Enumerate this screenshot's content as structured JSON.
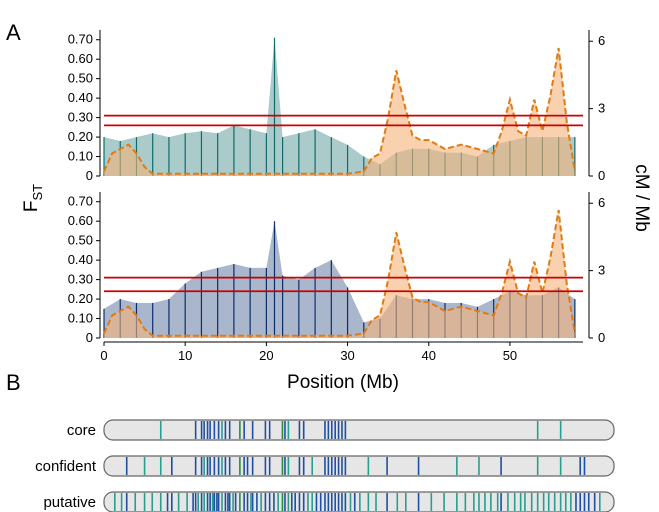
{
  "panels": {
    "a_label": "A",
    "b_label": "B"
  },
  "axes": {
    "left_label_main": "F",
    "left_label_sub": "ST",
    "right_label": "cM / Mb",
    "x_label": "Position (Mb)",
    "fst_ticks": [
      "0",
      "0.10",
      "0.20",
      "0.30",
      "0.40",
      "0.50",
      "0.60",
      "0.70"
    ],
    "cm_ticks": [
      "0",
      "3",
      "6"
    ],
    "x_ticks": [
      "0",
      "10",
      "20",
      "30",
      "40",
      "50"
    ]
  },
  "colors": {
    "top_series": "#0f6b6b",
    "bottom_series": "#0b2e6b",
    "recomb_line": "#e07b12",
    "recomb_fill": "#f5b27a",
    "threshold": "#cc0000",
    "track_bg": "#e6e6e6",
    "track_border": "#666666",
    "band_blue": "#1f4fa0",
    "band_teal": "#2a9d8f",
    "band_green": "#2e8b3a"
  },
  "chart_data": [
    {
      "type": "bar",
      "title": "",
      "xlabel": "Position (Mb)",
      "ylabel": "FST",
      "y2label": "cM / Mb",
      "xlim": [
        0,
        59
      ],
      "ylim": [
        0,
        0.75
      ],
      "y2lim": [
        0,
        6.5
      ],
      "grid": false,
      "thresholds": [
        0.31,
        0.26
      ],
      "series": [
        {
          "kind": "fst",
          "x": [
            0,
            2,
            4,
            6,
            8,
            10,
            12,
            14,
            16,
            18,
            20,
            21,
            22,
            24,
            26,
            28,
            30,
            32,
            34,
            36,
            38,
            40,
            42,
            44,
            46,
            48,
            50,
            52,
            54,
            56,
            58
          ],
          "values": [
            0.2,
            0.18,
            0.2,
            0.22,
            0.2,
            0.22,
            0.23,
            0.22,
            0.26,
            0.24,
            0.22,
            0.71,
            0.2,
            0.22,
            0.24,
            0.2,
            0.16,
            0.1,
            0.06,
            0.12,
            0.14,
            0.14,
            0.12,
            0.12,
            0.1,
            0.16,
            0.18,
            0.2,
            0.2,
            0.2,
            0.2
          ]
        },
        {
          "kind": "recombination",
          "x": [
            0,
            1,
            2,
            3,
            4,
            5,
            6,
            8,
            10,
            12,
            14,
            16,
            18,
            20,
            22,
            24,
            26,
            28,
            30,
            32,
            33,
            34,
            35,
            36,
            37,
            38,
            39,
            40,
            42,
            44,
            46,
            48,
            49,
            50,
            51,
            52,
            53,
            54,
            55,
            56,
            57,
            58
          ],
          "values": [
            0.2,
            1.0,
            1.2,
            1.4,
            1.0,
            0.4,
            0.1,
            0.1,
            0.1,
            0.1,
            0.1,
            0.1,
            0.1,
            0.1,
            0.1,
            0.1,
            0.1,
            0.1,
            0.1,
            0.2,
            0.8,
            1.0,
            2.6,
            4.7,
            3.2,
            1.8,
            1.6,
            1.6,
            1.2,
            1.4,
            1.2,
            1.0,
            2.0,
            3.4,
            2.0,
            1.8,
            3.4,
            2.0,
            3.6,
            5.7,
            2.4,
            0.2
          ]
        }
      ]
    },
    {
      "type": "bar",
      "title": "",
      "xlabel": "Position (Mb)",
      "ylabel": "FST",
      "y2label": "cM / Mb",
      "xlim": [
        0,
        59
      ],
      "ylim": [
        0,
        0.75
      ],
      "y2lim": [
        0,
        6.5
      ],
      "grid": false,
      "thresholds": [
        0.31,
        0.24
      ],
      "series": [
        {
          "kind": "fst",
          "x": [
            0,
            2,
            4,
            6,
            8,
            10,
            12,
            14,
            16,
            18,
            20,
            21,
            22,
            24,
            26,
            28,
            30,
            32,
            34,
            36,
            38,
            40,
            42,
            44,
            46,
            48,
            50,
            52,
            54,
            56,
            58
          ],
          "values": [
            0.15,
            0.2,
            0.18,
            0.18,
            0.2,
            0.28,
            0.34,
            0.36,
            0.38,
            0.36,
            0.36,
            0.6,
            0.32,
            0.3,
            0.36,
            0.4,
            0.26,
            0.08,
            0.1,
            0.22,
            0.2,
            0.2,
            0.18,
            0.18,
            0.16,
            0.2,
            0.24,
            0.22,
            0.22,
            0.26,
            0.2
          ]
        },
        {
          "kind": "recombination",
          "x": [
            0,
            1,
            2,
            3,
            4,
            5,
            6,
            8,
            10,
            12,
            14,
            16,
            18,
            20,
            22,
            24,
            26,
            28,
            30,
            32,
            33,
            34,
            35,
            36,
            37,
            38,
            39,
            40,
            42,
            44,
            46,
            48,
            49,
            50,
            51,
            52,
            53,
            54,
            55,
            56,
            57,
            58
          ],
          "values": [
            0.2,
            1.0,
            1.2,
            1.4,
            1.0,
            0.4,
            0.1,
            0.1,
            0.1,
            0.1,
            0.1,
            0.1,
            0.1,
            0.1,
            0.1,
            0.1,
            0.1,
            0.1,
            0.1,
            0.2,
            0.8,
            1.0,
            2.6,
            4.7,
            3.2,
            1.8,
            1.6,
            1.6,
            1.2,
            1.4,
            1.2,
            1.0,
            2.0,
            3.4,
            2.0,
            1.8,
            3.4,
            2.0,
            3.6,
            5.7,
            2.4,
            0.2
          ]
        }
      ]
    }
  ],
  "tracks": [
    {
      "label": "core",
      "positions": [
        6.2,
        10.3,
        11.0,
        11.3,
        11.7,
        12.0,
        12.5,
        13.0,
        13.4,
        13.8,
        14.3,
        15.5,
        16.0,
        17.0,
        18.5,
        19.0,
        20.5,
        20.8,
        21.2,
        22.5,
        23.0,
        25.5,
        25.9,
        26.3,
        26.7,
        27.1,
        27.5,
        27.9,
        50.5,
        53.2
      ],
      "colors": [
        "band_teal",
        "band_blue",
        "band_blue",
        "band_blue",
        "band_blue",
        "band_blue",
        "band_blue",
        "band_blue",
        "band_teal",
        "band_blue",
        "band_blue",
        "band_green",
        "band_blue",
        "band_blue",
        "band_blue",
        "band_blue",
        "band_green",
        "band_blue",
        "band_teal",
        "band_blue",
        "band_blue",
        "band_blue",
        "band_blue",
        "band_blue",
        "band_blue",
        "band_blue",
        "band_blue",
        "band_blue",
        "band_teal",
        "band_teal"
      ]
    },
    {
      "label": "confident",
      "positions": [
        2.2,
        4.3,
        6.2,
        7.5,
        10.3,
        11.0,
        11.3,
        11.7,
        12.0,
        12.5,
        13.0,
        13.4,
        13.8,
        14.3,
        15.5,
        16.0,
        16.4,
        17.0,
        18.5,
        19.0,
        20.5,
        20.8,
        21.2,
        22.5,
        23.0,
        24.0,
        25.5,
        25.9,
        26.3,
        26.7,
        27.1,
        27.5,
        27.9,
        30.6,
        32.8,
        36.5,
        41.0,
        43.6,
        46.2,
        50.5,
        53.2,
        55.5,
        56.0
      ],
      "colors": [
        "band_blue",
        "band_teal",
        "band_teal",
        "band_blue",
        "band_blue",
        "band_blue",
        "band_teal",
        "band_blue",
        "band_blue",
        "band_blue",
        "band_blue",
        "band_teal",
        "band_blue",
        "band_blue",
        "band_green",
        "band_blue",
        "band_blue",
        "band_blue",
        "band_blue",
        "band_blue",
        "band_green",
        "band_blue",
        "band_teal",
        "band_blue",
        "band_blue",
        "band_teal",
        "band_blue",
        "band_blue",
        "band_blue",
        "band_blue",
        "band_blue",
        "band_blue",
        "band_blue",
        "band_teal",
        "band_blue",
        "band_blue",
        "band_teal",
        "band_teal",
        "band_blue",
        "band_teal",
        "band_teal",
        "band_blue",
        "band_blue"
      ]
    },
    {
      "label": "putative",
      "positions": [
        0.8,
        1.6,
        2.2,
        3.2,
        4.3,
        5.2,
        6.2,
        7.0,
        7.5,
        8.3,
        9.3,
        10.0,
        10.3,
        10.6,
        11.0,
        11.3,
        11.7,
        12.0,
        12.3,
        12.5,
        12.8,
        13.0,
        13.4,
        13.8,
        14.1,
        14.3,
        14.7,
        15.0,
        15.5,
        16.0,
        16.4,
        16.8,
        17.0,
        17.5,
        18.0,
        18.5,
        19.0,
        19.5,
        20.0,
        20.5,
        20.8,
        21.2,
        21.6,
        22.0,
        22.5,
        23.0,
        23.5,
        24.0,
        24.5,
        25.0,
        25.5,
        25.9,
        26.3,
        26.7,
        27.1,
        27.5,
        27.9,
        28.5,
        29.0,
        29.6,
        30.6,
        31.5,
        32.8,
        34.0,
        35.0,
        36.5,
        38.0,
        39.5,
        41.0,
        42.0,
        43.0,
        43.6,
        44.3,
        45.0,
        45.8,
        46.2,
        47.0,
        47.8,
        48.5,
        49.0,
        49.8,
        50.5,
        51.2,
        51.8,
        52.5,
        53.2,
        53.8,
        54.4,
        55.0,
        55.5,
        56.0,
        56.5,
        57.2,
        57.8
      ],
      "colors": [
        "band_teal",
        "band_teal",
        "band_blue",
        "band_teal",
        "band_teal",
        "band_teal",
        "band_teal",
        "band_blue",
        "band_blue",
        "band_teal",
        "band_teal",
        "band_blue",
        "band_blue",
        "band_teal",
        "band_blue",
        "band_teal",
        "band_blue",
        "band_blue",
        "band_teal",
        "band_blue",
        "band_blue",
        "band_blue",
        "band_teal",
        "band_blue",
        "band_blue",
        "band_blue",
        "band_teal",
        "band_blue",
        "band_green",
        "band_blue",
        "band_blue",
        "band_teal",
        "band_blue",
        "band_blue",
        "band_teal",
        "band_blue",
        "band_blue",
        "band_blue",
        "band_teal",
        "band_green",
        "band_blue",
        "band_teal",
        "band_blue",
        "band_blue",
        "band_blue",
        "band_blue",
        "band_teal",
        "band_teal",
        "band_blue",
        "band_blue",
        "band_blue",
        "band_blue",
        "band_blue",
        "band_blue",
        "band_blue",
        "band_blue",
        "band_blue",
        "band_teal",
        "band_blue",
        "band_teal",
        "band_teal",
        "band_teal",
        "band_blue",
        "band_teal",
        "band_teal",
        "band_blue",
        "band_teal",
        "band_teal",
        "band_teal",
        "band_teal",
        "band_teal",
        "band_teal",
        "band_teal",
        "band_teal",
        "band_teal",
        "band_blue",
        "band_teal",
        "band_teal",
        "band_teal",
        "band_teal",
        "band_teal",
        "band_teal",
        "band_teal",
        "band_teal",
        "band_teal",
        "band_teal",
        "band_teal",
        "band_teal",
        "band_blue",
        "band_blue",
        "band_blue",
        "band_blue",
        "band_blue",
        "band_teal"
      ]
    }
  ]
}
